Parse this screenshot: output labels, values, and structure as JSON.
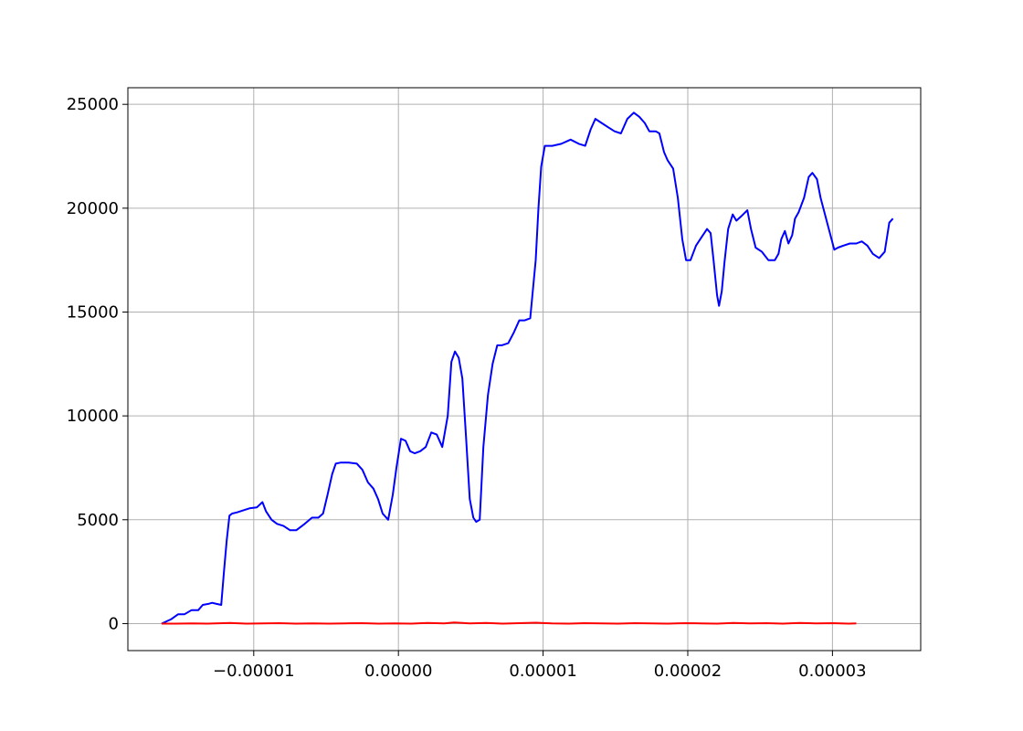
{
  "chart_data": {
    "type": "line",
    "title": "",
    "xlabel": "",
    "ylabel": "",
    "xlim": [
      -1.87e-05,
      3.61e-05
    ],
    "ylim": [
      -1300,
      25800
    ],
    "grid": true,
    "legend": "none",
    "x_ticks": [
      {
        "value": -1e-05,
        "label": "−0.00001"
      },
      {
        "value": 0,
        "label": "0.00000"
      },
      {
        "value": 1e-05,
        "label": "0.00001"
      },
      {
        "value": 2e-05,
        "label": "0.00002"
      },
      {
        "value": 3e-05,
        "label": "0.00003"
      }
    ],
    "y_ticks": [
      {
        "value": 0,
        "label": "0"
      },
      {
        "value": 5000,
        "label": "5000"
      },
      {
        "value": 10000,
        "label": "10000"
      },
      {
        "value": 15000,
        "label": "15000"
      },
      {
        "value": 20000,
        "label": "20000"
      },
      {
        "value": 25000,
        "label": "25000"
      }
    ],
    "series": [
      {
        "color": "#0000ff",
        "points": [
          [
            -1.637e-05,
            0
          ],
          [
            -1.573e-05,
            200
          ],
          [
            -1.522e-05,
            450
          ],
          [
            -1.478e-05,
            450
          ],
          [
            -1.43e-05,
            650
          ],
          [
            -1.383e-05,
            650
          ],
          [
            -1.352e-05,
            900
          ],
          [
            -1.314e-05,
            950
          ],
          [
            -1.288e-05,
            1000
          ],
          [
            -1.257e-05,
            950
          ],
          [
            -1.225e-05,
            900
          ],
          [
            -1.206e-05,
            2500
          ],
          [
            -1.187e-05,
            4000
          ],
          [
            -1.168e-05,
            5200
          ],
          [
            -1.149e-05,
            5300
          ],
          [
            -1.117e-05,
            5350
          ],
          [
            -1.073e-05,
            5450
          ],
          [
            -1.029e-05,
            5550
          ],
          [
            -9.78e-06,
            5600
          ],
          [
            -9.4e-06,
            5850
          ],
          [
            -9.15e-06,
            5400
          ],
          [
            -8.77e-06,
            5000
          ],
          [
            -8.39e-06,
            4800
          ],
          [
            -7.94e-06,
            4700
          ],
          [
            -7.5e-06,
            4500
          ],
          [
            -7.05e-06,
            4500
          ],
          [
            -6.48e-06,
            4800
          ],
          [
            -5.97e-06,
            5100
          ],
          [
            -5.53e-06,
            5100
          ],
          [
            -5.21e-06,
            5300
          ],
          [
            -4.9e-06,
            6200
          ],
          [
            -4.58e-06,
            7200
          ],
          [
            -4.33e-06,
            7700
          ],
          [
            -4.01e-06,
            7750
          ],
          [
            -3.44e-06,
            7750
          ],
          [
            -2.87e-06,
            7700
          ],
          [
            -2.49e-06,
            7400
          ],
          [
            -2.11e-06,
            6800
          ],
          [
            -1.73e-06,
            6500
          ],
          [
            -1.41e-06,
            6000
          ],
          [
            -1.09e-06,
            5300
          ],
          [
            -7.1e-07,
            5000
          ],
          [
            -3.9e-07,
            6200
          ],
          [
            -1.4e-07,
            7500
          ],
          [
            1.8e-07,
            8900
          ],
          [
            4.9e-07,
            8800
          ],
          [
            8.1e-07,
            8300
          ],
          [
            1.13e-06,
            8200
          ],
          [
            1.51e-06,
            8300
          ],
          [
            1.89e-06,
            8500
          ],
          [
            2.27e-06,
            9200
          ],
          [
            2.65e-06,
            9100
          ],
          [
            3.03e-06,
            8500
          ],
          [
            3.41e-06,
            10000
          ],
          [
            3.66e-06,
            12600
          ],
          [
            3.91e-06,
            13100
          ],
          [
            4.17e-06,
            12800
          ],
          [
            4.42e-06,
            11800
          ],
          [
            4.67e-06,
            9000
          ],
          [
            4.93e-06,
            6000
          ],
          [
            5.18e-06,
            5100
          ],
          [
            5.37e-06,
            4900
          ],
          [
            5.62e-06,
            5000
          ],
          [
            5.87e-06,
            8500
          ],
          [
            6.19e-06,
            11000
          ],
          [
            6.51e-06,
            12500
          ],
          [
            6.83e-06,
            13400
          ],
          [
            7.14e-06,
            13400
          ],
          [
            7.59e-06,
            13500
          ],
          [
            7.97e-06,
            14000
          ],
          [
            8.35e-06,
            14600
          ],
          [
            8.73e-06,
            14600
          ],
          [
            9.11e-06,
            14700
          ],
          [
            9.49e-06,
            17500
          ],
          [
            9.68e-06,
            20000
          ],
          [
            9.87e-06,
            22000
          ],
          [
            1.012e-05,
            23000
          ],
          [
            1.063e-05,
            23000
          ],
          [
            1.126e-05,
            23100
          ],
          [
            1.19e-05,
            23300
          ],
          [
            1.247e-05,
            23100
          ],
          [
            1.291e-05,
            23000
          ],
          [
            1.329e-05,
            23800
          ],
          [
            1.361e-05,
            24300
          ],
          [
            1.405e-05,
            24100
          ],
          [
            1.449e-05,
            23900
          ],
          [
            1.494e-05,
            23700
          ],
          [
            1.538e-05,
            23600
          ],
          [
            1.582e-05,
            24300
          ],
          [
            1.627e-05,
            24600
          ],
          [
            1.665e-05,
            24400
          ],
          [
            1.703e-05,
            24100
          ],
          [
            1.734e-05,
            23700
          ],
          [
            1.779e-05,
            23700
          ],
          [
            1.804e-05,
            23600
          ],
          [
            1.836e-05,
            22700
          ],
          [
            1.861e-05,
            22300
          ],
          [
            1.899e-05,
            21900
          ],
          [
            1.931e-05,
            20500
          ],
          [
            1.962e-05,
            18500
          ],
          [
            1.988e-05,
            17500
          ],
          [
            2.019e-05,
            17500
          ],
          [
            2.057e-05,
            18200
          ],
          [
            2.095e-05,
            18600
          ],
          [
            2.133e-05,
            19000
          ],
          [
            2.158e-05,
            18800
          ],
          [
            2.178e-05,
            17500
          ],
          [
            2.203e-05,
            15800
          ],
          [
            2.216e-05,
            15300
          ],
          [
            2.235e-05,
            16000
          ],
          [
            2.254e-05,
            17400
          ],
          [
            2.279e-05,
            19000
          ],
          [
            2.311e-05,
            19700
          ],
          [
            2.336e-05,
            19400
          ],
          [
            2.368e-05,
            19600
          ],
          [
            2.412e-05,
            19900
          ],
          [
            2.437e-05,
            19000
          ],
          [
            2.469e-05,
            18100
          ],
          [
            2.513e-05,
            17900
          ],
          [
            2.557e-05,
            17500
          ],
          [
            2.602e-05,
            17500
          ],
          [
            2.627e-05,
            17800
          ],
          [
            2.646e-05,
            18500
          ],
          [
            2.671e-05,
            18900
          ],
          [
            2.696e-05,
            18300
          ],
          [
            2.722e-05,
            18700
          ],
          [
            2.741e-05,
            19500
          ],
          [
            2.766e-05,
            19800
          ],
          [
            2.804e-05,
            20500
          ],
          [
            2.836e-05,
            21500
          ],
          [
            2.861e-05,
            21700
          ],
          [
            2.893e-05,
            21400
          ],
          [
            2.918e-05,
            20500
          ],
          [
            2.956e-05,
            19500
          ],
          [
            2.994e-05,
            18500
          ],
          [
            3.013e-05,
            18000
          ],
          [
            3.038e-05,
            18100
          ],
          [
            3.076e-05,
            18200
          ],
          [
            3.12e-05,
            18300
          ],
          [
            3.165e-05,
            18300
          ],
          [
            3.203e-05,
            18400
          ],
          [
            3.241e-05,
            18200
          ],
          [
            3.279e-05,
            17800
          ],
          [
            3.323e-05,
            17600
          ],
          [
            3.361e-05,
            17900
          ],
          [
            3.393e-05,
            19300
          ],
          [
            3.418e-05,
            19500
          ]
        ]
      },
      {
        "color": "#ff0000",
        "points": [
          [
            -1.637e-05,
            0
          ],
          [
            -1.535e-05,
            0
          ],
          [
            -1.422e-05,
            10
          ],
          [
            -1.321e-05,
            0
          ],
          [
            -1.213e-05,
            20
          ],
          [
            -1.162e-05,
            30
          ],
          [
            -1.05e-05,
            0
          ],
          [
            -9.36e-06,
            10
          ],
          [
            -8.23e-06,
            20
          ],
          [
            -7.08e-06,
            0
          ],
          [
            -5.94e-06,
            10
          ],
          [
            -4.8e-06,
            0
          ],
          [
            -3.66e-06,
            10
          ],
          [
            -2.53e-06,
            20
          ],
          [
            -1.39e-06,
            0
          ],
          [
            -2.5e-07,
            10
          ],
          [
            8.8e-07,
            0
          ],
          [
            2.02e-06,
            30
          ],
          [
            3.16e-06,
            10
          ],
          [
            3.85e-06,
            50
          ],
          [
            4.93e-06,
            10
          ],
          [
            6.07e-06,
            30
          ],
          [
            7.2e-06,
            0
          ],
          [
            8.34e-06,
            20
          ],
          [
            9.49e-06,
            40
          ],
          [
            1.062e-05,
            10
          ],
          [
            1.177e-05,
            0
          ],
          [
            1.29e-05,
            20
          ],
          [
            1.405e-05,
            10
          ],
          [
            1.519e-05,
            0
          ],
          [
            1.633e-05,
            20
          ],
          [
            1.747e-05,
            10
          ],
          [
            1.861e-05,
            0
          ],
          [
            1.975e-05,
            20
          ],
          [
            2.088e-05,
            10
          ],
          [
            2.203e-05,
            0
          ],
          [
            2.317e-05,
            30
          ],
          [
            2.43e-05,
            10
          ],
          [
            2.545e-05,
            20
          ],
          [
            2.658e-05,
            0
          ],
          [
            2.772e-05,
            30
          ],
          [
            2.886e-05,
            10
          ],
          [
            3e-05,
            20
          ],
          [
            3.114e-05,
            0
          ],
          [
            3.165e-05,
            10
          ]
        ]
      }
    ]
  }
}
